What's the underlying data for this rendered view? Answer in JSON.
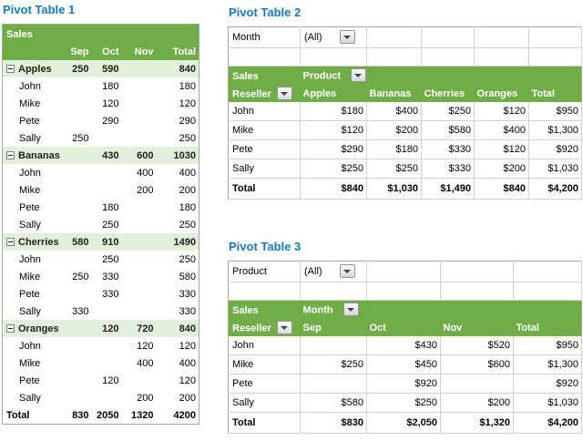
{
  "colors": {
    "header_green": "#70AD47",
    "band_green": "#E2EFDA",
    "filter_green": "#EAF1E2",
    "title_blue": "#1778BE",
    "total_bottom_border": "#4E7A2E",
    "grid_line": "#D2D2D2"
  },
  "icons": {
    "dropdown": "chevron-down in gray button",
    "collapse": "minus in small box"
  },
  "pt1": {
    "title": "Pivot Table 1",
    "header_label": "Sales",
    "columns": [
      "",
      "Sep",
      "Oct",
      "Nov",
      "Total"
    ],
    "rows": [
      {
        "type": "category",
        "icon": "collapse",
        "cells": [
          "Apples",
          "250",
          "590",
          "",
          "840"
        ]
      },
      {
        "type": "item",
        "cells": [
          "John",
          "",
          "180",
          "",
          "180"
        ]
      },
      {
        "type": "item",
        "cells": [
          "Mike",
          "",
          "120",
          "",
          "120"
        ]
      },
      {
        "type": "item",
        "cells": [
          "Pete",
          "",
          "290",
          "",
          "290"
        ]
      },
      {
        "type": "item",
        "cells": [
          "Sally",
          "250",
          "",
          "",
          "250"
        ]
      },
      {
        "type": "category",
        "icon": "collapse",
        "cells": [
          "Bananas",
          "",
          "430",
          "600",
          "1030"
        ]
      },
      {
        "type": "item",
        "cells": [
          "John",
          "",
          "",
          "400",
          "400"
        ]
      },
      {
        "type": "item",
        "cells": [
          "Mike",
          "",
          "",
          "200",
          "200"
        ]
      },
      {
        "type": "item",
        "cells": [
          "Pete",
          "",
          "180",
          "",
          "180"
        ]
      },
      {
        "type": "item",
        "cells": [
          "Sally",
          "",
          "250",
          "",
          "250"
        ]
      },
      {
        "type": "category",
        "icon": "collapse",
        "cells": [
          "Cherries",
          "580",
          "910",
          "",
          "1490"
        ]
      },
      {
        "type": "item",
        "cells": [
          "John",
          "",
          "250",
          "",
          "250"
        ]
      },
      {
        "type": "item",
        "cells": [
          "Mike",
          "250",
          "330",
          "",
          "580"
        ]
      },
      {
        "type": "item",
        "cells": [
          "Pete",
          "",
          "330",
          "",
          "330"
        ]
      },
      {
        "type": "item",
        "cells": [
          "Sally",
          "330",
          "",
          "",
          "330"
        ]
      },
      {
        "type": "category",
        "icon": "collapse",
        "cells": [
          "Oranges",
          "",
          "120",
          "720",
          "840"
        ]
      },
      {
        "type": "item",
        "cells": [
          "John",
          "",
          "",
          "120",
          "120"
        ]
      },
      {
        "type": "item",
        "cells": [
          "Mike",
          "",
          "",
          "400",
          "400"
        ]
      },
      {
        "type": "item",
        "cells": [
          "Pete",
          "",
          "120",
          "",
          "120"
        ]
      },
      {
        "type": "item",
        "cells": [
          "Sally",
          "",
          "",
          "200",
          "200"
        ]
      },
      {
        "type": "total",
        "cells": [
          "Total",
          "830",
          "2050",
          "1320",
          "4200"
        ]
      }
    ]
  },
  "pt2": {
    "title": "Pivot Table 2",
    "filter": {
      "label": "Month",
      "value": "(All)"
    },
    "header": {
      "corner_top": "Sales",
      "corner_bottom": "Reseller",
      "field": "Product",
      "columns": [
        "Apples",
        "Bananas",
        "Cherries",
        "Oranges",
        "Total"
      ]
    },
    "rows": [
      {
        "type": "data",
        "cells": [
          "John",
          "$180",
          "$400",
          "$250",
          "$120",
          "$950"
        ]
      },
      {
        "type": "data",
        "cells": [
          "Mike",
          "$120",
          "$200",
          "$580",
          "$400",
          "$1,300"
        ]
      },
      {
        "type": "data",
        "cells": [
          "Pete",
          "$290",
          "$180",
          "$330",
          "$120",
          "$920"
        ]
      },
      {
        "type": "data",
        "cells": [
          "Sally",
          "$250",
          "$250",
          "$330",
          "$200",
          "$1,030"
        ]
      },
      {
        "type": "total",
        "cells": [
          "Total",
          "$840",
          "$1,030",
          "$1,490",
          "$840",
          "$4,200"
        ]
      }
    ]
  },
  "pt3": {
    "title": "Pivot Table 3",
    "filter": {
      "label": "Product",
      "value": "(All)"
    },
    "header": {
      "corner_top": "Sales",
      "corner_bottom": "Reseller",
      "field": "Month",
      "columns": [
        "Sep",
        "Oct",
        "Nov",
        "Total"
      ]
    },
    "rows": [
      {
        "type": "data",
        "cells": [
          "John",
          "",
          "$430",
          "$520",
          "$950"
        ]
      },
      {
        "type": "data",
        "cells": [
          "Mike",
          "$250",
          "$450",
          "$600",
          "$1,300"
        ]
      },
      {
        "type": "data",
        "cells": [
          "Pete",
          "",
          "$920",
          "",
          "$920"
        ]
      },
      {
        "type": "data",
        "cells": [
          "Sally",
          "$580",
          "$250",
          "$200",
          "$1,030"
        ]
      },
      {
        "type": "total",
        "cells": [
          "Total",
          "$830",
          "$2,050",
          "$1,320",
          "$4,200"
        ]
      }
    ]
  }
}
